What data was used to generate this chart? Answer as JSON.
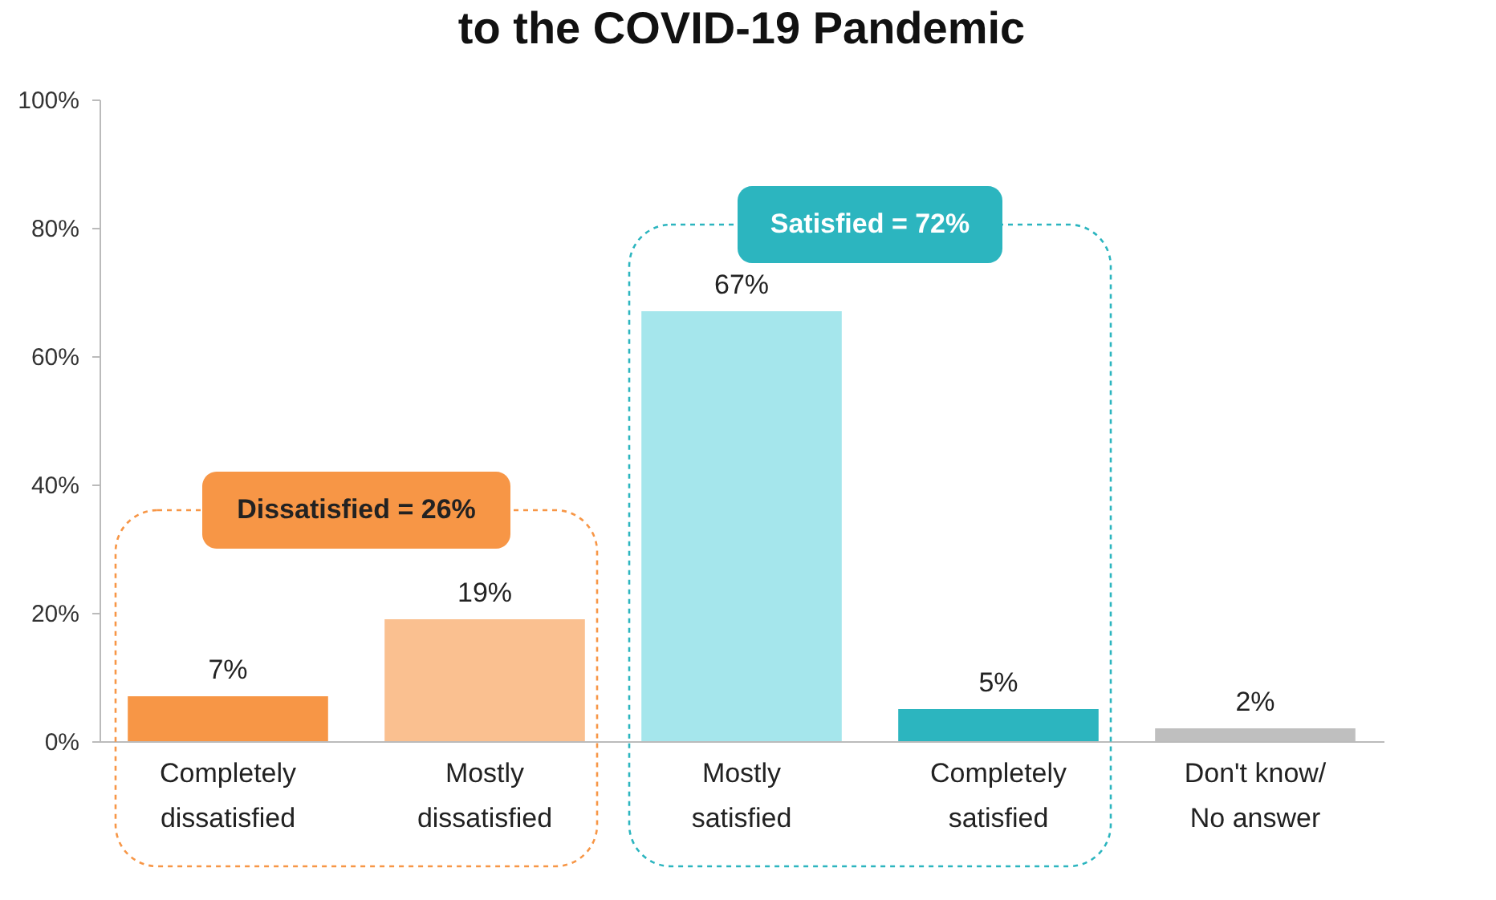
{
  "chart_data": {
    "type": "bar",
    "title": "to the COVID-19 Pandemic",
    "categories": [
      "Completely dissatisfied",
      "Mostly dissatisfied",
      "Mostly satisfied",
      "Completely satisfied",
      "Don't know/ No answer"
    ],
    "values": [
      7,
      19,
      67,
      5,
      2
    ],
    "colors": [
      "#f79646",
      "#fac090",
      "#a5e6ec",
      "#2cb5bf",
      "#bfbfbf"
    ],
    "value_labels": [
      "7%",
      "19%",
      "67%",
      "5%",
      "2%"
    ],
    "ylim": [
      0,
      100
    ],
    "yticks": [
      {
        "value": 0,
        "label": "0%"
      },
      {
        "value": 20,
        "label": "20%"
      },
      {
        "value": 40,
        "label": "40%"
      },
      {
        "value": 60,
        "label": "60%"
      },
      {
        "value": 80,
        "label": "80%"
      },
      {
        "value": 100,
        "label": "100%"
      }
    ],
    "annotations": [
      "Dissatisfied = 26%",
      "Satisfied = 72%"
    ],
    "grid": false
  }
}
